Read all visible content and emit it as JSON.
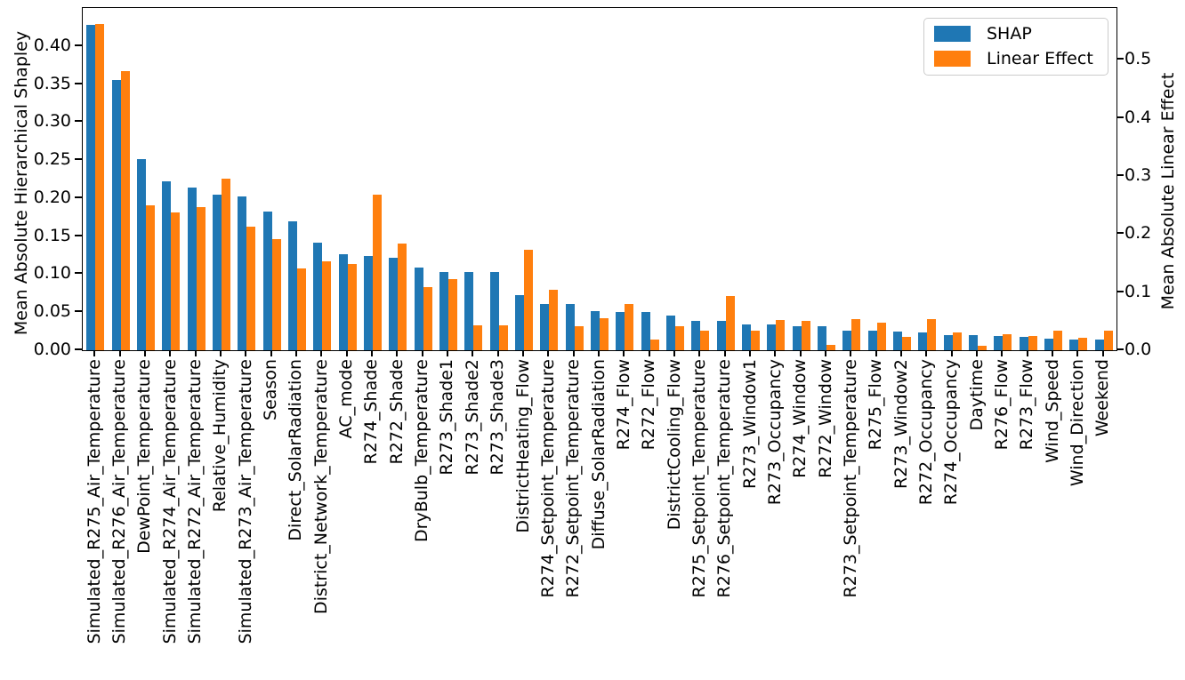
{
  "chart_data": {
    "type": "bar",
    "title": "",
    "grid": false,
    "categories": [
      "Simulated_R275_Air_Temperature",
      "Simulated_R276_Air_Temperature",
      "DewPoint_Temperature",
      "Simulated_R274_Air_Temperature",
      "Simulated_R272_Air_Temperature",
      "Relative_Humidity",
      "Simulated_R273_Air_Temperature",
      "Season",
      "Direct_SolarRadiation",
      "District_Network_Temperature",
      "AC_mode",
      "R274_Shade",
      "R272_Shade",
      "DryBulb_Temperature",
      "R273_Shade1",
      "R273_Shade2",
      "R273_Shade3",
      "DistrictHeating_Flow",
      "R274_Setpoint_Temperature",
      "R272_Setpoint_Temperature",
      "Diffuse_SolarRadiation",
      "R274_Flow",
      "R272_Flow",
      "DistrictCooling_Flow",
      "R275_Setpoint_Temperature",
      "R276_Setpoint_Temperature",
      "R273_Window1",
      "R273_Occupancy",
      "R274_Window",
      "R272_Window",
      "R273_Setpoint_Temperature",
      "R275_Flow",
      "R273_Window2",
      "R272_Occupancy",
      "R274_Occupancy",
      "Daytime",
      "R276_Flow",
      "R273_Flow",
      "Wind_Speed",
      "Wind_Direction",
      "Weekend"
    ],
    "series": [
      {
        "name": "SHAP",
        "color": "#1f77b4",
        "axis": "left",
        "values": [
          0.428,
          0.355,
          0.251,
          0.222,
          0.214,
          0.204,
          0.202,
          0.182,
          0.17,
          0.141,
          0.126,
          0.124,
          0.122,
          0.109,
          0.103,
          0.103,
          0.103,
          0.073,
          0.061,
          0.061,
          0.052,
          0.05,
          0.05,
          0.046,
          0.039,
          0.039,
          0.034,
          0.034,
          0.031,
          0.031,
          0.026,
          0.026,
          0.024,
          0.023,
          0.02,
          0.02,
          0.019,
          0.018,
          0.015,
          0.014,
          0.014
        ]
      },
      {
        "name": "Linear Effect",
        "color": "#ff7f0e",
        "axis": "right",
        "values": [
          0.561,
          0.48,
          0.25,
          0.237,
          0.247,
          0.295,
          0.212,
          0.191,
          0.141,
          0.153,
          0.148,
          0.268,
          0.184,
          0.109,
          0.123,
          0.043,
          0.043,
          0.173,
          0.104,
          0.042,
          0.055,
          0.08,
          0.018,
          0.042,
          0.034,
          0.093,
          0.033,
          0.052,
          0.051,
          0.009,
          0.053,
          0.047,
          0.023,
          0.053,
          0.03,
          0.007,
          0.028,
          0.024,
          0.033,
          0.021,
          0.034
        ]
      }
    ],
    "left_axis": {
      "label": "Mean Absolute Hierarchical Shapley",
      "ticks": [
        0.0,
        0.05,
        0.1,
        0.15,
        0.2,
        0.25,
        0.3,
        0.35,
        0.4
      ],
      "tick_labels": [
        "0.00",
        "0.05",
        "0.10",
        "0.15",
        "0.20",
        "0.25",
        "0.30",
        "0.35",
        "0.40"
      ],
      "range": [
        0,
        0.45
      ]
    },
    "right_axis": {
      "label": "Mean Absolute Linear Effect",
      "ticks": [
        0.0,
        0.1,
        0.2,
        0.3,
        0.4,
        0.5
      ],
      "tick_labels": [
        "0.0",
        "0.1",
        "0.2",
        "0.3",
        "0.4",
        "0.5"
      ],
      "range": [
        0,
        0.589
      ]
    },
    "legend": {
      "position": "upper right",
      "entries": [
        "SHAP",
        "Linear Effect"
      ]
    }
  }
}
